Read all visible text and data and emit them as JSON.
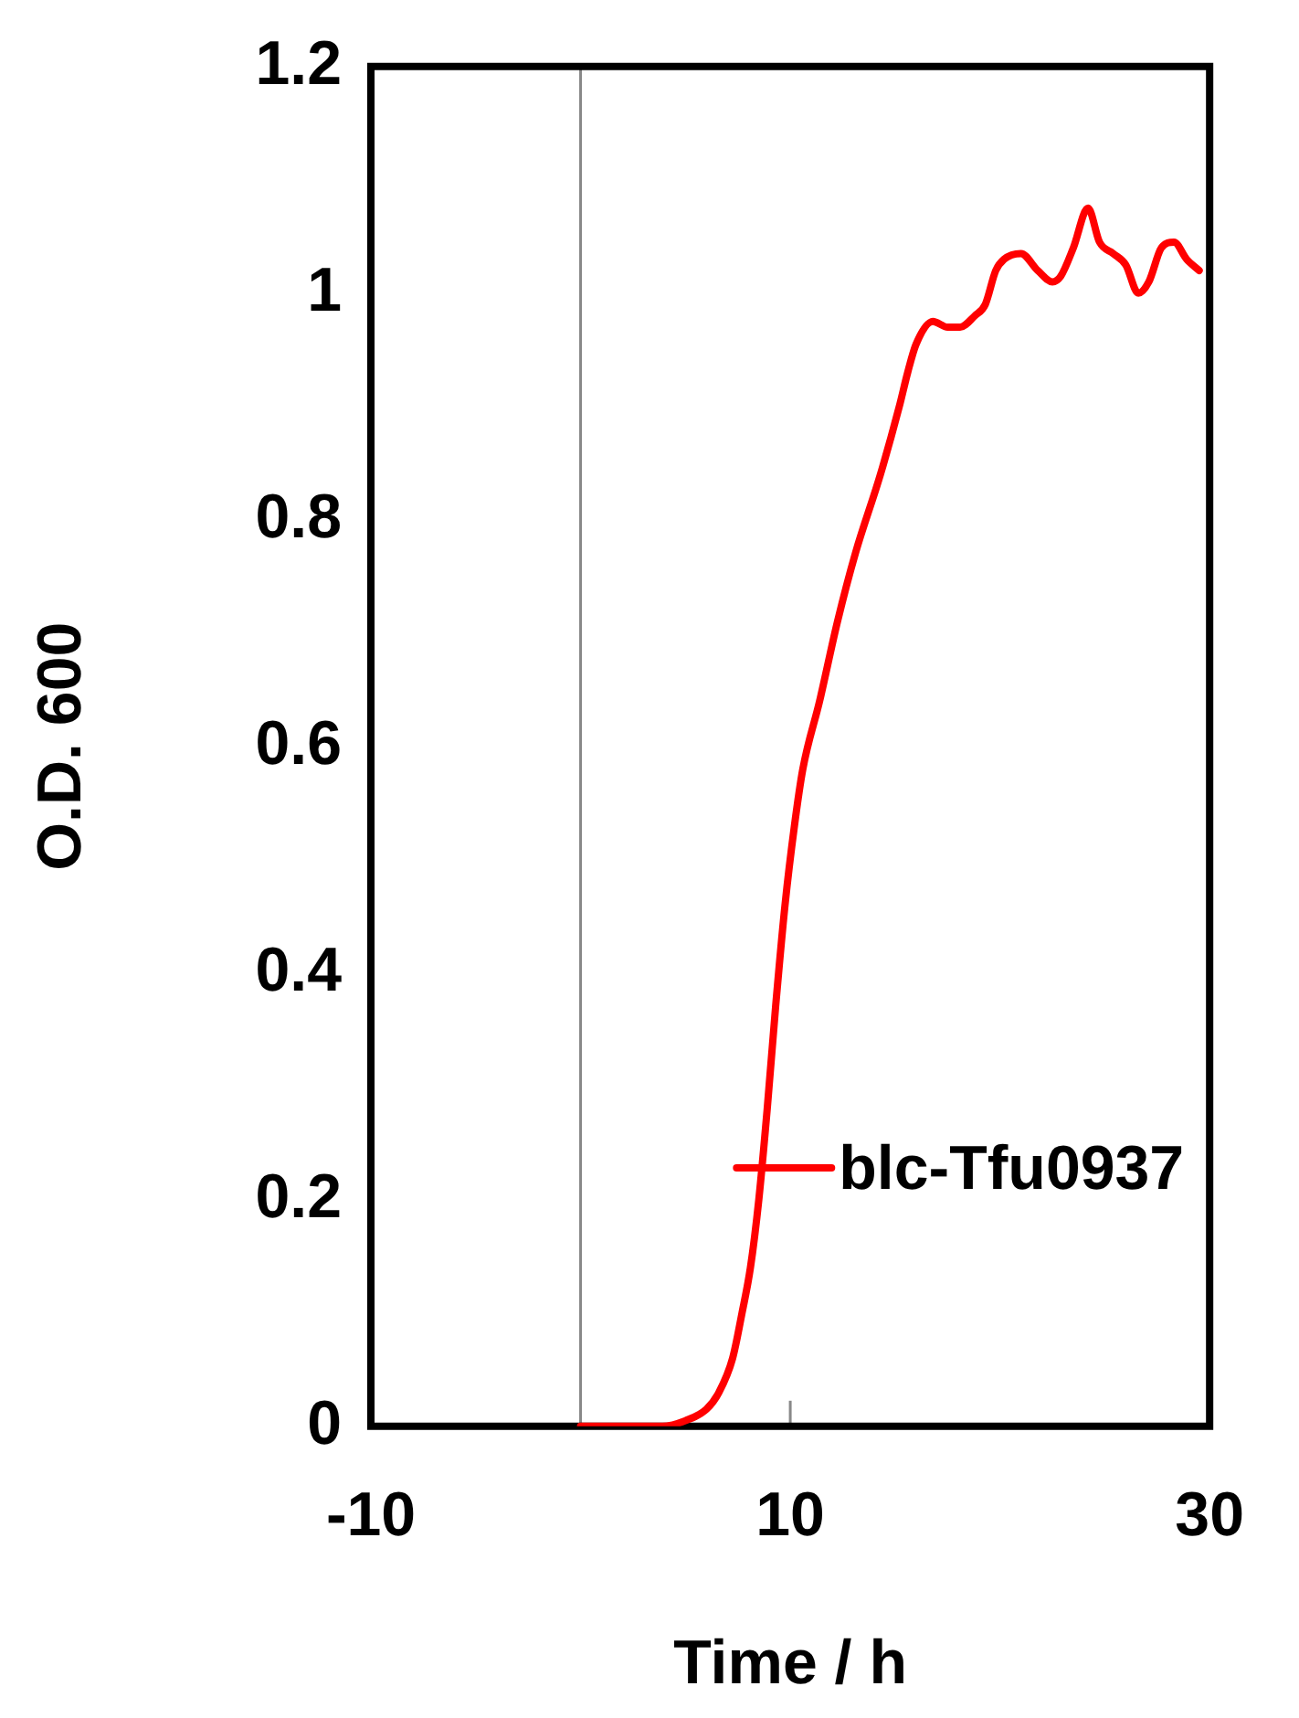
{
  "chart_data": {
    "type": "line",
    "xlabel": "Time / h",
    "ylabel": "O.D. 600",
    "xlim": [
      -10,
      30
    ],
    "xticks": [
      -10,
      10,
      30
    ],
    "ylim": [
      0,
      1.2
    ],
    "yticks": [
      0,
      0.2,
      0.4,
      0.6,
      0.8,
      1,
      1.2
    ],
    "grid": false,
    "legend": "right",
    "marker": "none",
    "line_style": "solid",
    "series": [
      {
        "name": "blc-Tfu0937",
        "color": "#ff0000",
        "x": [
          0,
          2,
          3.9,
          5,
          6,
          6.6,
          7.25,
          7.7,
          8.1,
          8.5,
          8.9,
          9.3,
          9.75,
          10.2,
          10.6,
          11.4,
          12.25,
          13.1,
          14.3,
          15.2,
          15.6,
          16,
          16.8,
          17.5,
          18.1,
          18.8,
          19.3,
          19.8,
          20.2,
          21,
          21.8,
          22.5,
          22.9,
          23.5,
          24.2,
          24.75,
          25.4,
          26,
          26.6,
          27.1,
          27.7,
          28.3,
          28.9,
          29.5
        ],
        "values": [
          0,
          0,
          0,
          0.005,
          0.015,
          0.03,
          0.06,
          0.1,
          0.14,
          0.2,
          0.28,
          0.37,
          0.46,
          0.53,
          0.58,
          0.64,
          0.71,
          0.77,
          0.84,
          0.9,
          0.93,
          0.955,
          0.975,
          0.97,
          0.97,
          0.98,
          0.99,
          1.02,
          1.03,
          1.035,
          1.02,
          1.01,
          1.015,
          1.04,
          1.075,
          1.045,
          1.035,
          1.025,
          1.0,
          1.01,
          1.04,
          1.045,
          1.03,
          1.02
        ]
      }
    ]
  }
}
